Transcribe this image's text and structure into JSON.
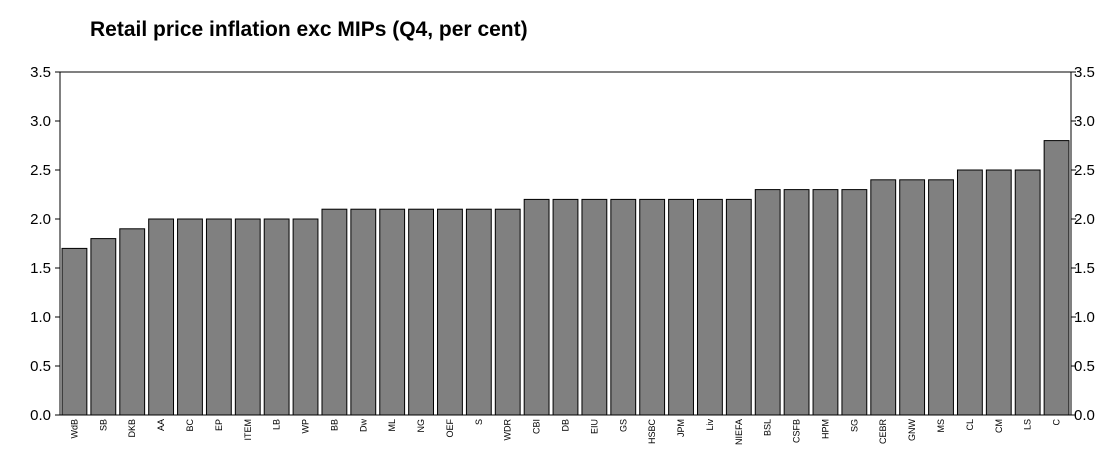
{
  "chart_data": {
    "type": "bar",
    "title": "Retail price inflation exc MIPs (Q4, per cent)",
    "categories": [
      "WdB",
      "SB",
      "DKB",
      "AA",
      "BC",
      "EP",
      "ITEM",
      "LB",
      "WP",
      "BB",
      "Dw",
      "ML",
      "NG",
      "OEF",
      "S",
      "WDR",
      "CBI",
      "DB",
      "EIU",
      "GS",
      "HSBC",
      "JPM",
      "Liv",
      "NIEFA",
      "BSL",
      "CSFB",
      "HPM",
      "SG",
      "CEBR",
      "GNW",
      "MS",
      "CL",
      "CM",
      "LS",
      "C"
    ],
    "values": [
      1.7,
      1.8,
      1.9,
      2.0,
      2.0,
      2.0,
      2.0,
      2.0,
      2.0,
      2.1,
      2.1,
      2.1,
      2.1,
      2.1,
      2.1,
      2.1,
      2.2,
      2.2,
      2.2,
      2.2,
      2.2,
      2.2,
      2.2,
      2.2,
      2.3,
      2.3,
      2.3,
      2.3,
      2.4,
      2.4,
      2.4,
      2.5,
      2.5,
      2.5,
      2.8
    ],
    "ylim": [
      0,
      3.5
    ],
    "yticks": [
      "0.0",
      "0.5",
      "1.0",
      "1.5",
      "2.0",
      "2.5",
      "3.0",
      "3.5"
    ],
    "ytick_values": [
      0,
      0.5,
      1.0,
      1.5,
      2.0,
      2.5,
      3.0,
      3.5
    ],
    "xlabel": "",
    "ylabel": "",
    "secondary_y_axis": true,
    "grid": false,
    "legend": "none",
    "colors": {
      "bar_fill": "#808080",
      "bar_stroke": "#000000",
      "axis": "#000000",
      "background": "#ffffff"
    }
  }
}
